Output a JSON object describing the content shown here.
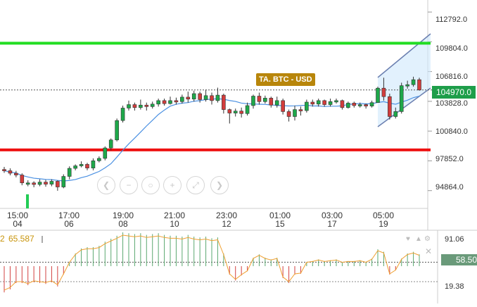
{
  "instrument_label": "TA. BTC - USD",
  "current_price_tag": "104970.0",
  "price_axis_labels": [
    "112792.0",
    "109804.0",
    "106816.0",
    "103828.0",
    "100840.0",
    "97852.0",
    "94864.0"
  ],
  "time_axis": [
    {
      "time": "15:00",
      "day": "04"
    },
    {
      "time": "17:00",
      "day": "06"
    },
    {
      "time": "19:00",
      "day": "08"
    },
    {
      "time": "21:00",
      "day": "10"
    },
    {
      "time": "23:00",
      "day": "12"
    },
    {
      "time": "01:00",
      "day": "15"
    },
    {
      "time": "03:00",
      "day": "17"
    },
    {
      "time": "05:00",
      "day": "19"
    }
  ],
  "oscillator": {
    "index_label": "2",
    "value_label": "65.587",
    "axis_labels": [
      "91.06",
      "19.38"
    ],
    "current_tag": "58.50",
    "controls": [
      "♥",
      "▲",
      "⚙",
      "✕"
    ]
  },
  "horizontal_lines": {
    "resistance_color": "#22dd22",
    "support_color": "#ee1111"
  },
  "colors": {
    "up": "#1ea84a",
    "down": "#d23c3c",
    "ma": "#4a90e2",
    "osc": "#f0a030",
    "channel": "#cfe8fb"
  },
  "nav_icons": [
    "chevron-left-icon",
    "zoom-out-icon",
    "zoom-reset-icon",
    "zoom-in-icon",
    "chevron-right-icon",
    "fullscreen-icon"
  ],
  "chart_data": {
    "type": "candlestick",
    "candles": [
      [
        96990,
        96860,
        97250,
        96650
      ],
      [
        96860,
        96610,
        97100,
        96400
      ],
      [
        96610,
        96430,
        96850,
        96200
      ],
      [
        96430,
        95640,
        96600,
        95400
      ],
      [
        95640,
        95640,
        95900,
        95300
      ],
      [
        95640,
        95480,
        95800,
        95200
      ],
      [
        95480,
        95720,
        96000,
        95300
      ],
      [
        95720,
        95510,
        95950,
        95260
      ],
      [
        95510,
        95800,
        96000,
        95300
      ],
      [
        95800,
        95230,
        95900,
        94850
      ],
      [
        95230,
        96290,
        96500,
        95100
      ],
      [
        96290,
        97100,
        97300,
        96000
      ],
      [
        97100,
        97350,
        97500,
        96900
      ],
      [
        97350,
        97500,
        97800,
        97200
      ],
      [
        97500,
        97130,
        97650,
        96900
      ],
      [
        97130,
        97860,
        98100,
        96900
      ],
      [
        97860,
        98100,
        98300,
        97700
      ],
      [
        98100,
        99150,
        99300,
        97900
      ],
      [
        99150,
        99950,
        100100,
        98900
      ],
      [
        99950,
        101900,
        102100,
        99800
      ],
      [
        101900,
        103150,
        103400,
        101700
      ],
      [
        103150,
        103500,
        103900,
        102900
      ],
      [
        103500,
        103200,
        103700,
        102900
      ],
      [
        103200,
        103450,
        104000,
        103000
      ],
      [
        103450,
        103300,
        103700,
        102900
      ],
      [
        103300,
        103550,
        103800,
        103100
      ],
      [
        103550,
        103900,
        104100,
        103300
      ],
      [
        103900,
        103600,
        104100,
        103400
      ],
      [
        103600,
        103900,
        104300,
        103500
      ],
      [
        103900,
        103800,
        104200,
        103500
      ],
      [
        103800,
        104250,
        104500,
        103600
      ],
      [
        104250,
        104050,
        104800,
        103700
      ],
      [
        104050,
        104600,
        104900,
        103800
      ],
      [
        104600,
        104000,
        104800,
        103700
      ],
      [
        104000,
        104400,
        105000,
        103800
      ],
      [
        104400,
        103900,
        104700,
        103500
      ],
      [
        103900,
        104450,
        105200,
        103700
      ],
      [
        104450,
        103000,
        104600,
        102600
      ],
      [
        103000,
        102650,
        103100,
        101600
      ],
      [
        102650,
        102850,
        103100,
        102300
      ],
      [
        102850,
        102600,
        103200,
        102200
      ],
      [
        102600,
        103400,
        103700,
        102400
      ],
      [
        103400,
        104350,
        104500,
        103100
      ],
      [
        104350,
        103800,
        104700,
        103500
      ],
      [
        103800,
        104150,
        104400,
        103600
      ],
      [
        104150,
        103450,
        104300,
        103200
      ],
      [
        103450,
        103900,
        104300,
        103200
      ],
      [
        103900,
        102800,
        104100,
        102500
      ],
      [
        102800,
        102300,
        103000,
        101800
      ],
      [
        102300,
        103000,
        103400,
        101900
      ],
      [
        103000,
        102900,
        103300,
        102400
      ],
      [
        102900,
        103750,
        104000,
        102700
      ],
      [
        103750,
        103550,
        104000,
        103300
      ],
      [
        103550,
        103900,
        104100,
        103300
      ],
      [
        103900,
        103500,
        104000,
        103300
      ],
      [
        103500,
        103800,
        104100,
        103300
      ],
      [
        103800,
        103900,
        104100,
        103600
      ],
      [
        103900,
        103200,
        104000,
        103000
      ],
      [
        103200,
        103650,
        103800,
        103100
      ],
      [
        103650,
        103400,
        103800,
        103200
      ],
      [
        103400,
        103500,
        103700,
        103200
      ],
      [
        103500,
        103350,
        103600,
        103100
      ],
      [
        103350,
        103700,
        103900,
        103200
      ],
      [
        103700,
        105150,
        105300,
        103800
      ],
      [
        105150,
        104300,
        106200,
        103900
      ],
      [
        104300,
        102300,
        104600,
        102000
      ],
      [
        102300,
        102800,
        103200,
        102100
      ],
      [
        102800,
        105400,
        105700,
        102600
      ],
      [
        105400,
        105500,
        105900,
        105100
      ],
      [
        105500,
        106000,
        106300,
        105300
      ],
      [
        106000,
        104970,
        106200,
        104900
      ]
    ],
    "price_range": [
      93500,
      114000
    ],
    "resistance": 109804,
    "support": 98950,
    "osc_bars": [
      -62,
      -55,
      -40,
      -40,
      -45,
      -38,
      -40,
      -42,
      -38,
      -48,
      -20,
      10,
      30,
      42,
      45,
      45,
      48,
      58,
      65,
      72,
      80,
      78,
      76,
      78,
      74,
      76,
      78,
      74,
      72,
      72,
      70,
      74,
      70,
      68,
      70,
      66,
      68,
      30,
      -20,
      -34,
      -22,
      -12,
      20,
      28,
      20,
      16,
      20,
      -28,
      -40,
      -20,
      -18,
      10,
      12,
      16,
      12,
      14,
      16,
      10,
      12,
      12,
      14,
      10,
      18,
      40,
      34,
      -20,
      -10,
      18,
      30,
      34,
      28
    ],
    "osc_range": [
      0,
      100
    ]
  }
}
